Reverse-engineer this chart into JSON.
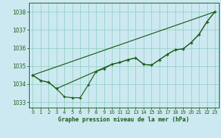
{
  "title": "Graphe pression niveau de la mer (hPa)",
  "bg_color": "#cce8f0",
  "line_color": "#1a5c1a",
  "grid_color": "#88ccbb",
  "xlim": [
    -0.5,
    23.5
  ],
  "ylim": [
    1032.7,
    1038.5
  ],
  "yticks": [
    1033,
    1034,
    1035,
    1036,
    1037,
    1038
  ],
  "xticks": [
    0,
    1,
    2,
    3,
    4,
    5,
    6,
    7,
    8,
    9,
    10,
    11,
    12,
    13,
    14,
    15,
    16,
    17,
    18,
    19,
    20,
    21,
    22,
    23
  ],
  "series1_x": [
    0,
    1,
    2,
    3,
    4,
    5,
    6,
    7,
    8,
    9,
    10,
    11,
    12,
    13,
    14,
    15,
    16,
    17,
    18,
    19,
    20,
    21,
    22,
    23
  ],
  "series1_y": [
    1034.5,
    1034.2,
    1034.1,
    1033.75,
    1033.3,
    1033.25,
    1033.25,
    1033.95,
    1034.7,
    1034.85,
    1035.1,
    1035.2,
    1035.35,
    1035.45,
    1035.1,
    1035.05,
    1035.35,
    1035.65,
    1035.9,
    1035.95,
    1036.3,
    1036.75,
    1037.45,
    1038.0
  ],
  "series2_x": [
    0,
    1,
    2,
    3,
    10,
    11,
    12,
    13,
    14,
    15,
    16,
    17,
    18,
    19,
    20,
    21,
    22,
    23
  ],
  "series2_y": [
    1034.5,
    1034.2,
    1034.1,
    1033.75,
    1035.1,
    1035.2,
    1035.35,
    1035.45,
    1035.1,
    1035.05,
    1035.35,
    1035.65,
    1035.9,
    1035.95,
    1036.3,
    1036.75,
    1037.45,
    1038.0
  ],
  "series3_x": [
    0,
    23
  ],
  "series3_y": [
    1034.5,
    1038.0
  ],
  "xlabel_fontsize": 6.0,
  "tick_fontsize": 5.0
}
